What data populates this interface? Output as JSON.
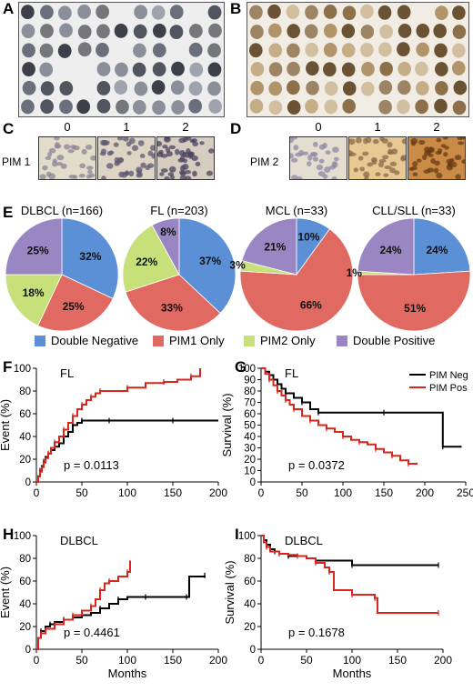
{
  "panels": {
    "a": "A",
    "b": "B",
    "c": "C",
    "d": "D",
    "e": "E",
    "f": "F",
    "g": "G",
    "h": "H",
    "i": "I"
  },
  "ihc": {
    "grades": [
      "0",
      "1",
      "2"
    ],
    "pim1_label": "PIM 1",
    "pim2_label": "PIM 2"
  },
  "colors": {
    "double_negative": "#5b8fd6",
    "pim1_only": "#e06a62",
    "pim2_only": "#c8e07a",
    "double_positive": "#9b86c4",
    "neg_line": "#000000",
    "pos_line": "#d9261c"
  },
  "legend": {
    "double_negative": "Double Negative",
    "pim1_only": "PIM1 Only",
    "pim2_only": "PIM2 Only",
    "double_positive": "Double Positive",
    "km_neg": "PIM Neg",
    "km_pos": "PIM Pos"
  },
  "chart_data": [
    {
      "type": "pie",
      "title": "DLBCL (n=166)",
      "categories": [
        "Double Negative",
        "PIM1 Only",
        "PIM2 Only",
        "Double Positive"
      ],
      "values": [
        32,
        25,
        18,
        25
      ],
      "labels": [
        "32%",
        "25%",
        "18%",
        "25%"
      ]
    },
    {
      "type": "pie",
      "title": "FL (n=203)",
      "categories": [
        "Double Negative",
        "PIM1 Only",
        "PIM2 Only",
        "Double Positive"
      ],
      "values": [
        37,
        33,
        22,
        8
      ],
      "labels": [
        "37%",
        "33%",
        "22%",
        "8%"
      ]
    },
    {
      "type": "pie",
      "title": "MCL (n=33)",
      "categories": [
        "Double Negative",
        "PIM1 Only",
        "PIM2 Only",
        "Double Positive"
      ],
      "values": [
        10,
        66,
        3,
        21
      ],
      "labels": [
        "10%",
        "66%",
        "3%",
        "21%"
      ]
    },
    {
      "type": "pie",
      "title": "CLL/SLL (n=33)",
      "categories": [
        "Double Negative",
        "PIM1 Only",
        "PIM2 Only",
        "Double Positive"
      ],
      "values": [
        24,
        51,
        1,
        24
      ],
      "labels": [
        "24%",
        "51%",
        "1%",
        "24%"
      ]
    },
    {
      "type": "line",
      "title": "FL",
      "xlabel": "",
      "ylabel": "Event (%)",
      "xlim": [
        0,
        200
      ],
      "ylim": [
        0,
        100
      ],
      "xticks": [
        "0",
        "50",
        "100",
        "150",
        "200"
      ],
      "yticks": [
        "0",
        "20",
        "40",
        "60",
        "80",
        "100"
      ],
      "pvalue": "p = 0.0113",
      "series": [
        {
          "key": "neg",
          "x": [
            0,
            2,
            4,
            6,
            8,
            10,
            13,
            16,
            20,
            25,
            30,
            35,
            40,
            45,
            50,
            60,
            80,
            100,
            150,
            200
          ],
          "y": [
            0,
            5,
            10,
            14,
            18,
            22,
            25,
            28,
            31,
            34,
            40,
            44,
            50,
            52,
            54,
            54,
            54,
            54,
            54,
            54
          ]
        },
        {
          "key": "pos",
          "x": [
            0,
            2,
            4,
            6,
            8,
            10,
            13,
            16,
            20,
            25,
            30,
            35,
            40,
            45,
            50,
            55,
            60,
            65,
            70,
            80,
            100,
            120,
            140,
            155,
            170,
            180
          ],
          "y": [
            0,
            5,
            9,
            13,
            17,
            21,
            25,
            30,
            35,
            40,
            46,
            52,
            58,
            64,
            68,
            72,
            75,
            78,
            80,
            80,
            83,
            87,
            88,
            90,
            93,
            100
          ]
        }
      ]
    },
    {
      "type": "line",
      "title": "FL",
      "xlabel": "",
      "ylabel": "Survival (%)",
      "xlim": [
        0,
        250
      ],
      "ylim": [
        0,
        100
      ],
      "xticks": [
        "0",
        "50",
        "100",
        "150",
        "200",
        "250"
      ],
      "yticks": [
        "0",
        "10",
        "20",
        "30",
        "40",
        "50",
        "60",
        "70",
        "80",
        "90",
        "100"
      ],
      "pvalue": "p = 0.0372",
      "series": [
        {
          "key": "neg",
          "x": [
            0,
            5,
            10,
            15,
            20,
            25,
            30,
            40,
            50,
            60,
            70,
            80,
            150,
            220,
            222,
            245
          ],
          "y": [
            100,
            97,
            94,
            90,
            86,
            82,
            78,
            74,
            70,
            64,
            61,
            61,
            61,
            61,
            31,
            31
          ]
        },
        {
          "key": "pos",
          "x": [
            0,
            5,
            10,
            15,
            20,
            25,
            30,
            35,
            40,
            50,
            60,
            70,
            80,
            90,
            100,
            110,
            120,
            130,
            140,
            150,
            160,
            170,
            180,
            190
          ],
          "y": [
            100,
            95,
            90,
            85,
            80,
            76,
            72,
            68,
            64,
            58,
            54,
            50,
            47,
            44,
            40,
            37,
            35,
            33,
            29,
            26,
            23,
            19,
            16,
            17
          ]
        }
      ]
    },
    {
      "type": "line",
      "title": "DLBCL",
      "xlabel": "Months",
      "ylabel": "Event (%)",
      "xlim": [
        0,
        200
      ],
      "ylim": [
        0,
        100
      ],
      "xticks": [
        "0",
        "50",
        "100",
        "150",
        "200"
      ],
      "yticks": [
        "0",
        "20",
        "40",
        "60",
        "80",
        "100"
      ],
      "pvalue": "p = 0.4461",
      "series": [
        {
          "key": "neg",
          "x": [
            0,
            2,
            5,
            10,
            15,
            20,
            30,
            40,
            50,
            60,
            70,
            80,
            90,
            100,
            120,
            140,
            165,
            168,
            185
          ],
          "y": [
            0,
            10,
            16,
            20,
            22,
            24,
            26,
            28,
            30,
            32,
            36,
            40,
            44,
            46,
            46,
            46,
            46,
            64,
            65
          ]
        },
        {
          "key": "pos",
          "x": [
            0,
            2,
            5,
            10,
            20,
            30,
            40,
            50,
            60,
            65,
            70,
            75,
            80,
            90,
            100,
            103
          ],
          "y": [
            0,
            10,
            14,
            18,
            22,
            26,
            30,
            34,
            38,
            44,
            52,
            58,
            60,
            64,
            68,
            78
          ]
        }
      ]
    },
    {
      "type": "line",
      "title": "DLBCL",
      "xlabel": "Months",
      "ylabel": "Survival (%)",
      "xlim": [
        0,
        200
      ],
      "ylim": [
        0,
        100
      ],
      "xticks": [
        "0",
        "50",
        "100",
        "150",
        "200"
      ],
      "yticks": [
        "0",
        "20",
        "40",
        "60",
        "80",
        "100"
      ],
      "pvalue": "p = 0.1678",
      "series": [
        {
          "key": "neg",
          "x": [
            0,
            3,
            6,
            10,
            15,
            20,
            30,
            50,
            60,
            80,
            100,
            120,
            195
          ],
          "y": [
            100,
            96,
            92,
            88,
            86,
            84,
            82,
            80,
            78,
            78,
            74,
            74,
            74
          ]
        },
        {
          "key": "pos",
          "x": [
            0,
            3,
            6,
            10,
            20,
            30,
            40,
            50,
            60,
            70,
            75,
            80,
            100,
            110,
            125,
            128,
            195
          ],
          "y": [
            100,
            94,
            90,
            86,
            84,
            83,
            82,
            80,
            76,
            72,
            68,
            52,
            48,
            48,
            45,
            32,
            32
          ]
        }
      ]
    }
  ]
}
